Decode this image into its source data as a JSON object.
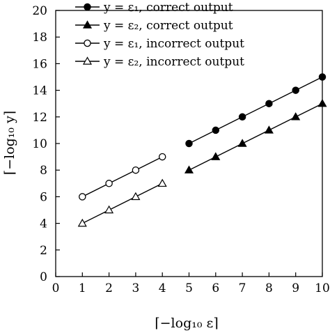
{
  "chart_data": {
    "type": "line",
    "xlabel": "⌈−log₁₀ ε⌉",
    "ylabel": "⌈−log₁₀ y⌉",
    "xlim": [
      0,
      10
    ],
    "ylim": [
      0,
      20
    ],
    "xticks": [
      0,
      1,
      2,
      3,
      4,
      5,
      6,
      7,
      8,
      9,
      10
    ],
    "yticks": [
      0,
      2,
      4,
      6,
      8,
      10,
      12,
      14,
      16,
      18,
      20
    ],
    "grid": false,
    "legend_position": "top-left",
    "series": [
      {
        "name": "y = ε₁, correct output",
        "marker": "circle-filled",
        "x": [
          5,
          6,
          7,
          8,
          9,
          10
        ],
        "y": [
          10,
          11,
          12,
          13,
          14,
          15
        ]
      },
      {
        "name": "y = ε₂, correct output",
        "marker": "triangle-filled",
        "x": [
          5,
          6,
          7,
          8,
          9,
          10
        ],
        "y": [
          8,
          9,
          10,
          11,
          12,
          13
        ]
      },
      {
        "name": "y = ε₁, incorrect output",
        "marker": "circle-open",
        "x": [
          1,
          2,
          3,
          4
        ],
        "y": [
          6,
          7,
          8,
          9
        ]
      },
      {
        "name": "y = ε₂, incorrect output",
        "marker": "triangle-open",
        "x": [
          1,
          2,
          3,
          4
        ],
        "y": [
          4,
          5,
          6,
          7
        ]
      }
    ]
  }
}
